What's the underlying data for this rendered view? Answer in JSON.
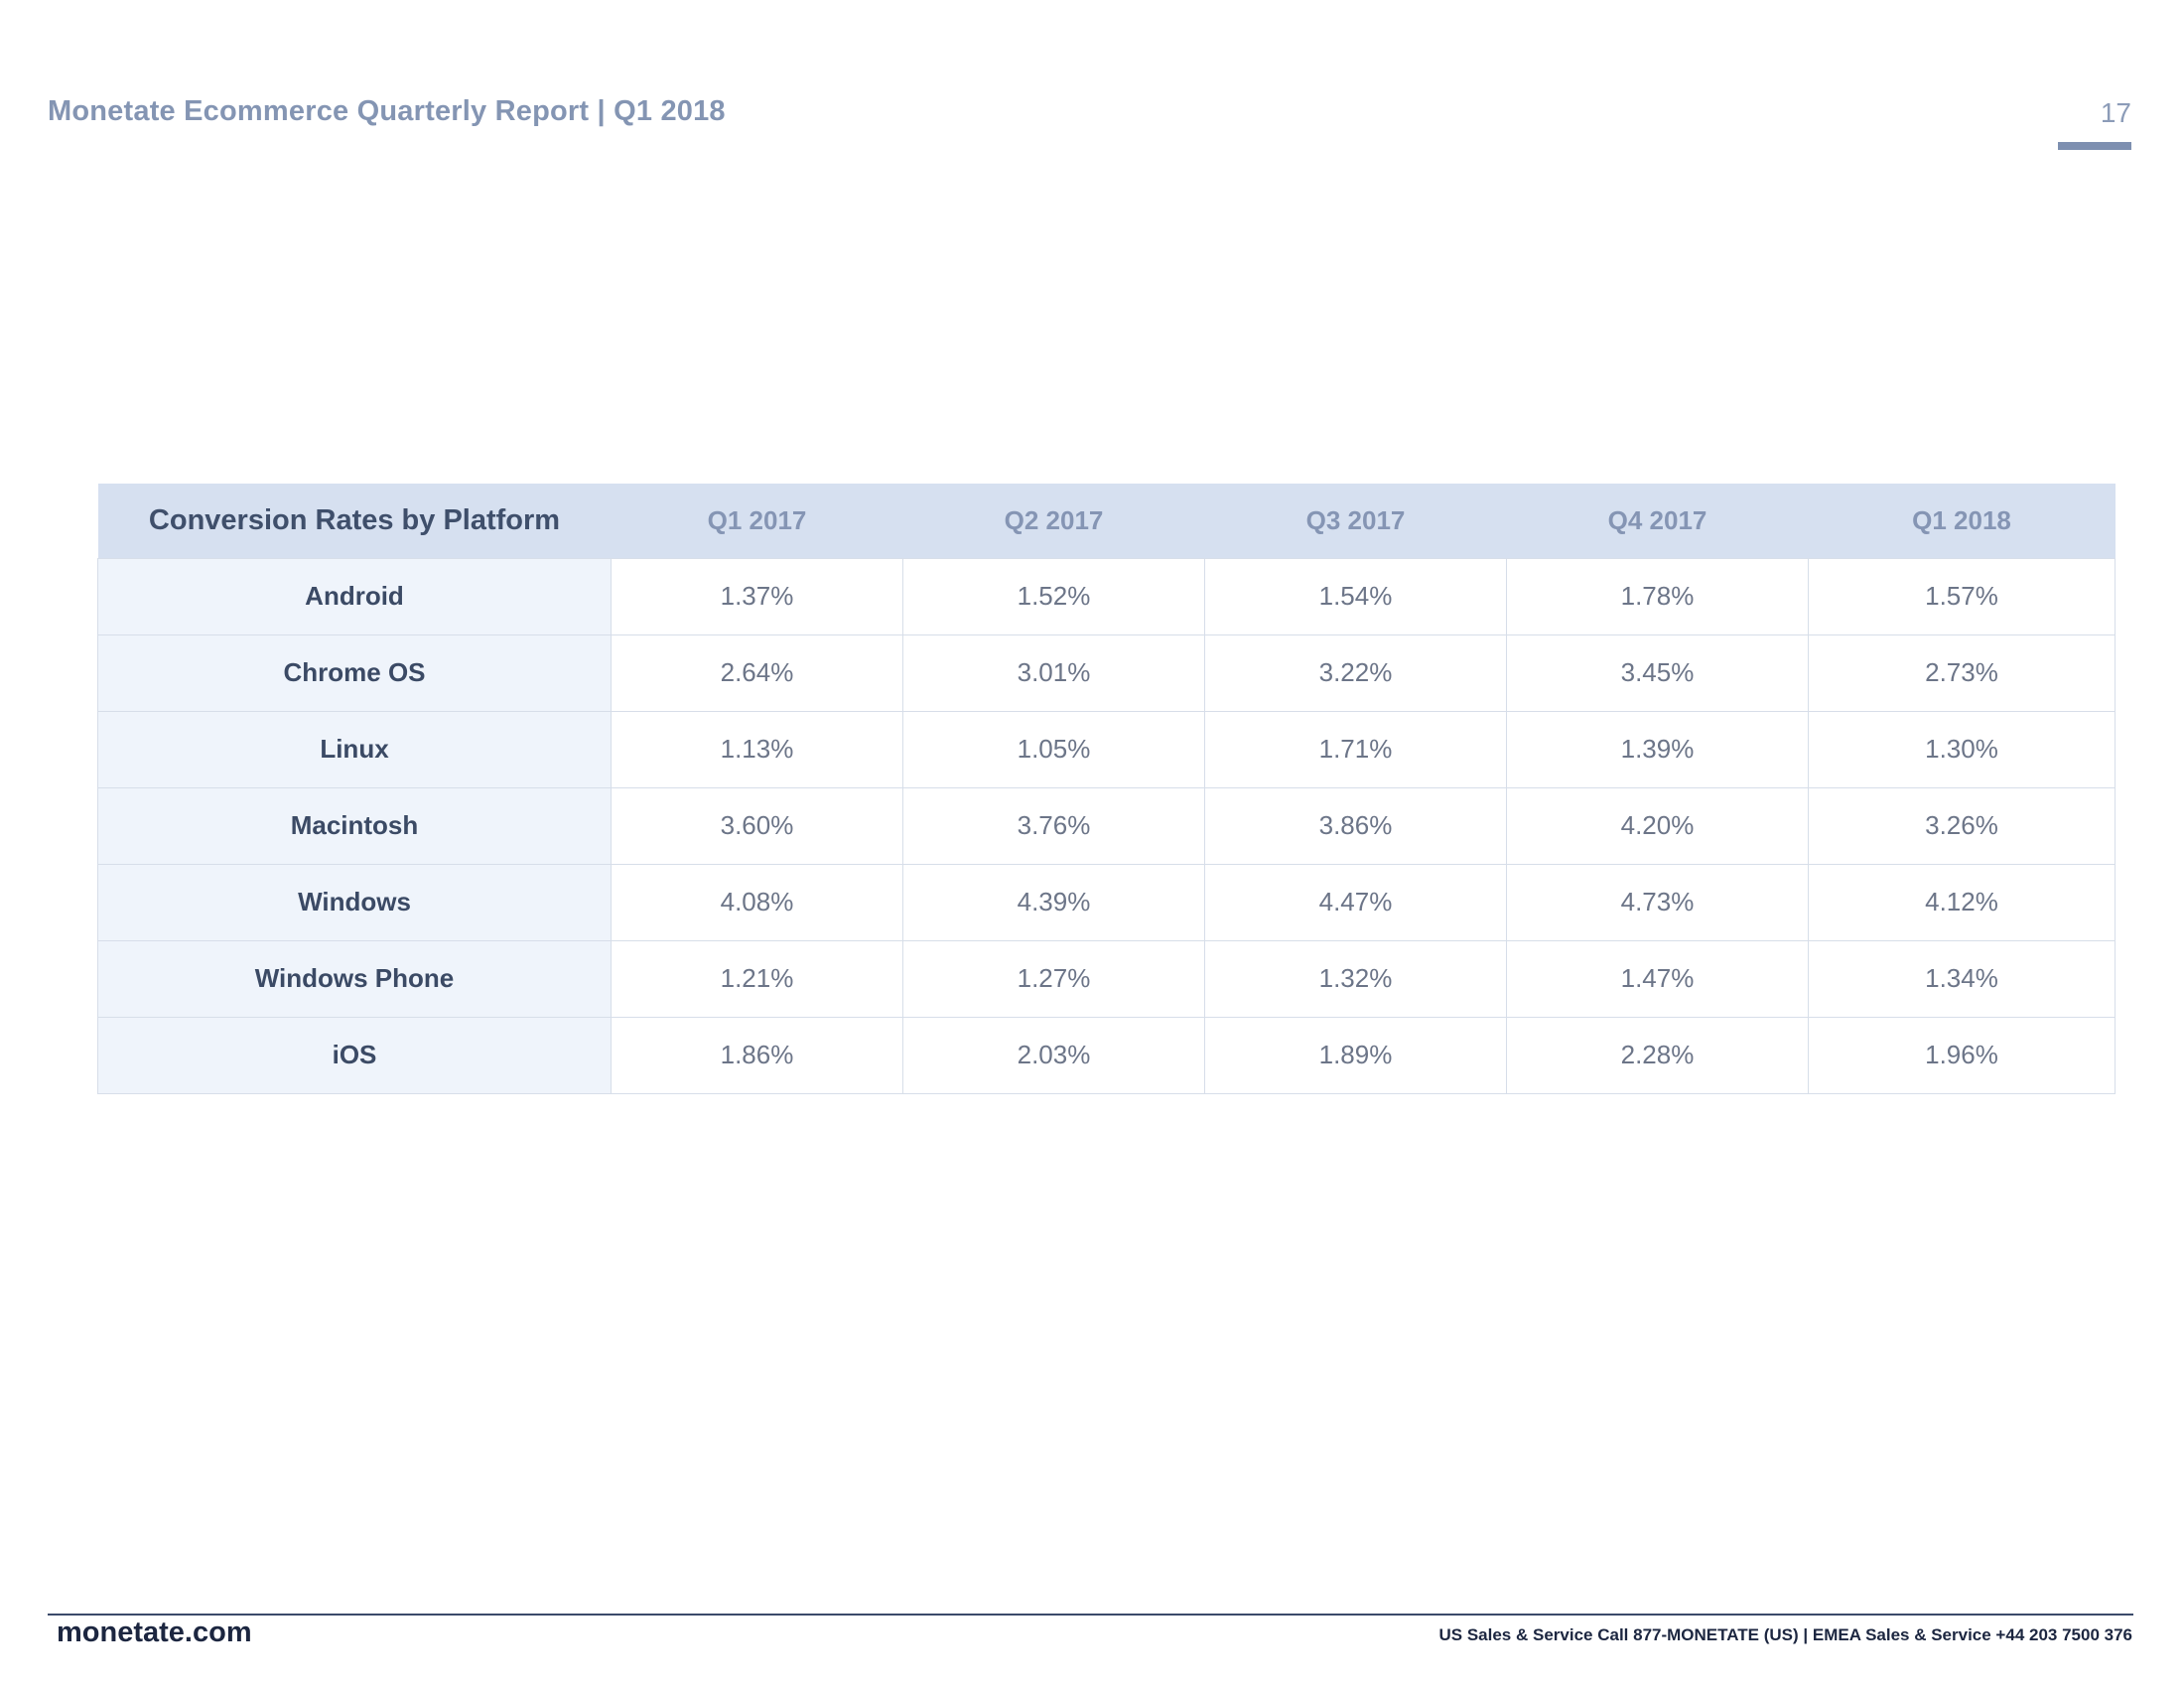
{
  "header": {
    "title": "Monetate Ecommerce Quarterly Report | Q1 2018",
    "page_number": "17"
  },
  "table": {
    "corner_label": "Conversion Rates by Platform",
    "columns": [
      "Q1 2017",
      "Q2 2017",
      "Q3 2017",
      "Q4 2017",
      "Q1 2018"
    ],
    "rows": [
      {
        "platform": "Android",
        "values": [
          "1.37%",
          "1.52%",
          "1.54%",
          "1.78%",
          "1.57%"
        ]
      },
      {
        "platform": "Chrome OS",
        "values": [
          "2.64%",
          "3.01%",
          "3.22%",
          "3.45%",
          "2.73%"
        ]
      },
      {
        "platform": "Linux",
        "values": [
          "1.13%",
          "1.05%",
          "1.71%",
          "1.39%",
          "1.30%"
        ]
      },
      {
        "platform": "Macintosh",
        "values": [
          "3.60%",
          "3.76%",
          "3.86%",
          "4.20%",
          "3.26%"
        ]
      },
      {
        "platform": "Windows",
        "values": [
          "4.08%",
          "4.39%",
          "4.47%",
          "4.73%",
          "4.12%"
        ]
      },
      {
        "platform": "Windows Phone",
        "values": [
          "1.21%",
          "1.27%",
          "1.32%",
          "1.47%",
          "1.34%"
        ]
      },
      {
        "platform": "iOS",
        "values": [
          "1.86%",
          "2.03%",
          "1.89%",
          "2.28%",
          "1.96%"
        ]
      }
    ]
  },
  "footer": {
    "brand": "monetate.com",
    "contact": "US Sales & Service Call 877-MONETATE (US) | EMEA Sales & Service +44 203 7500 376"
  }
}
